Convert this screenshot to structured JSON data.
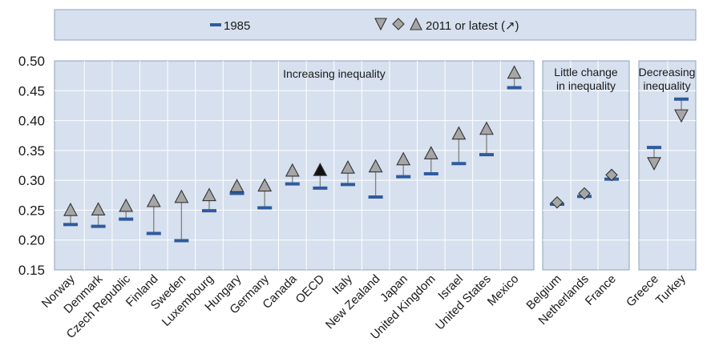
{
  "legend": {
    "item1985": "1985",
    "item2011": "2011 or latest (↗)"
  },
  "colors": {
    "panel_bg": "#d6e0ee",
    "dash_1985": "#2e5b9e",
    "marker_2011": "#a6a6a6",
    "marker_oecd": "#111111",
    "connector": "#808080"
  },
  "chart_data": {
    "type": "scatter",
    "ylim": [
      0.15,
      0.5
    ],
    "yticks": [
      "0.50",
      "0.45",
      "0.40",
      "0.35",
      "0.30",
      "0.25",
      "0.20",
      "0.15"
    ],
    "grid": "horizontal and vertical",
    "legend_position": "top",
    "series": [
      {
        "name": "1985",
        "marker": "dash"
      },
      {
        "name": "2011 or latest (↗)",
        "marker": "triangle / diamond"
      }
    ],
    "panels": [
      {
        "title": "Increasing inequality",
        "marker_2011": "triangle-up",
        "countries": [
          {
            "name": "Norway",
            "v1985": 0.226,
            "v2011": 0.249
          },
          {
            "name": "Denmark",
            "v1985": 0.223,
            "v2011": 0.25
          },
          {
            "name": "Czech Republic",
            "v1985": 0.235,
            "v2011": 0.256
          },
          {
            "name": "Finland",
            "v1985": 0.211,
            "v2011": 0.264
          },
          {
            "name": "Sweden",
            "v1985": 0.199,
            "v2011": 0.271
          },
          {
            "name": "Luxembourg",
            "v1985": 0.249,
            "v2011": 0.274
          },
          {
            "name": "Hungary",
            "v1985": 0.278,
            "v2011": 0.289
          },
          {
            "name": "Germany",
            "v1985": 0.254,
            "v2011": 0.29
          },
          {
            "name": "Canada",
            "v1985": 0.294,
            "v2011": 0.315
          },
          {
            "name": "OECD",
            "v1985": 0.287,
            "v2011": 0.316,
            "highlight": true
          },
          {
            "name": "Italy",
            "v1985": 0.293,
            "v2011": 0.32
          },
          {
            "name": "New Zealand",
            "v1985": 0.272,
            "v2011": 0.322
          },
          {
            "name": "Japan",
            "v1985": 0.306,
            "v2011": 0.334
          },
          {
            "name": "United Kingdom",
            "v1985": 0.311,
            "v2011": 0.344
          },
          {
            "name": "Israel",
            "v1985": 0.328,
            "v2011": 0.377
          },
          {
            "name": "United States",
            "v1985": 0.343,
            "v2011": 0.385
          },
          {
            "name": "Mexico",
            "v1985": 0.455,
            "v2011": 0.479
          }
        ]
      },
      {
        "title": "Little change in inequality",
        "title_lines": [
          "Little change",
          "in inequality"
        ],
        "marker_2011": "diamond",
        "countries": [
          {
            "name": "Belgium",
            "v1985": 0.26,
            "v2011": 0.263
          },
          {
            "name": "Netherlands",
            "v1985": 0.273,
            "v2011": 0.278
          },
          {
            "name": "France",
            "v1985": 0.302,
            "v2011": 0.309
          }
        ]
      },
      {
        "title": "Decreasing inequality",
        "title_lines": [
          "Decreasing",
          "inequality"
        ],
        "marker_2011": "triangle-down",
        "countries": [
          {
            "name": "Greece",
            "v1985": 0.355,
            "v2011": 0.33
          },
          {
            "name": "Turkey",
            "v1985": 0.436,
            "v2011": 0.41
          }
        ]
      }
    ]
  }
}
